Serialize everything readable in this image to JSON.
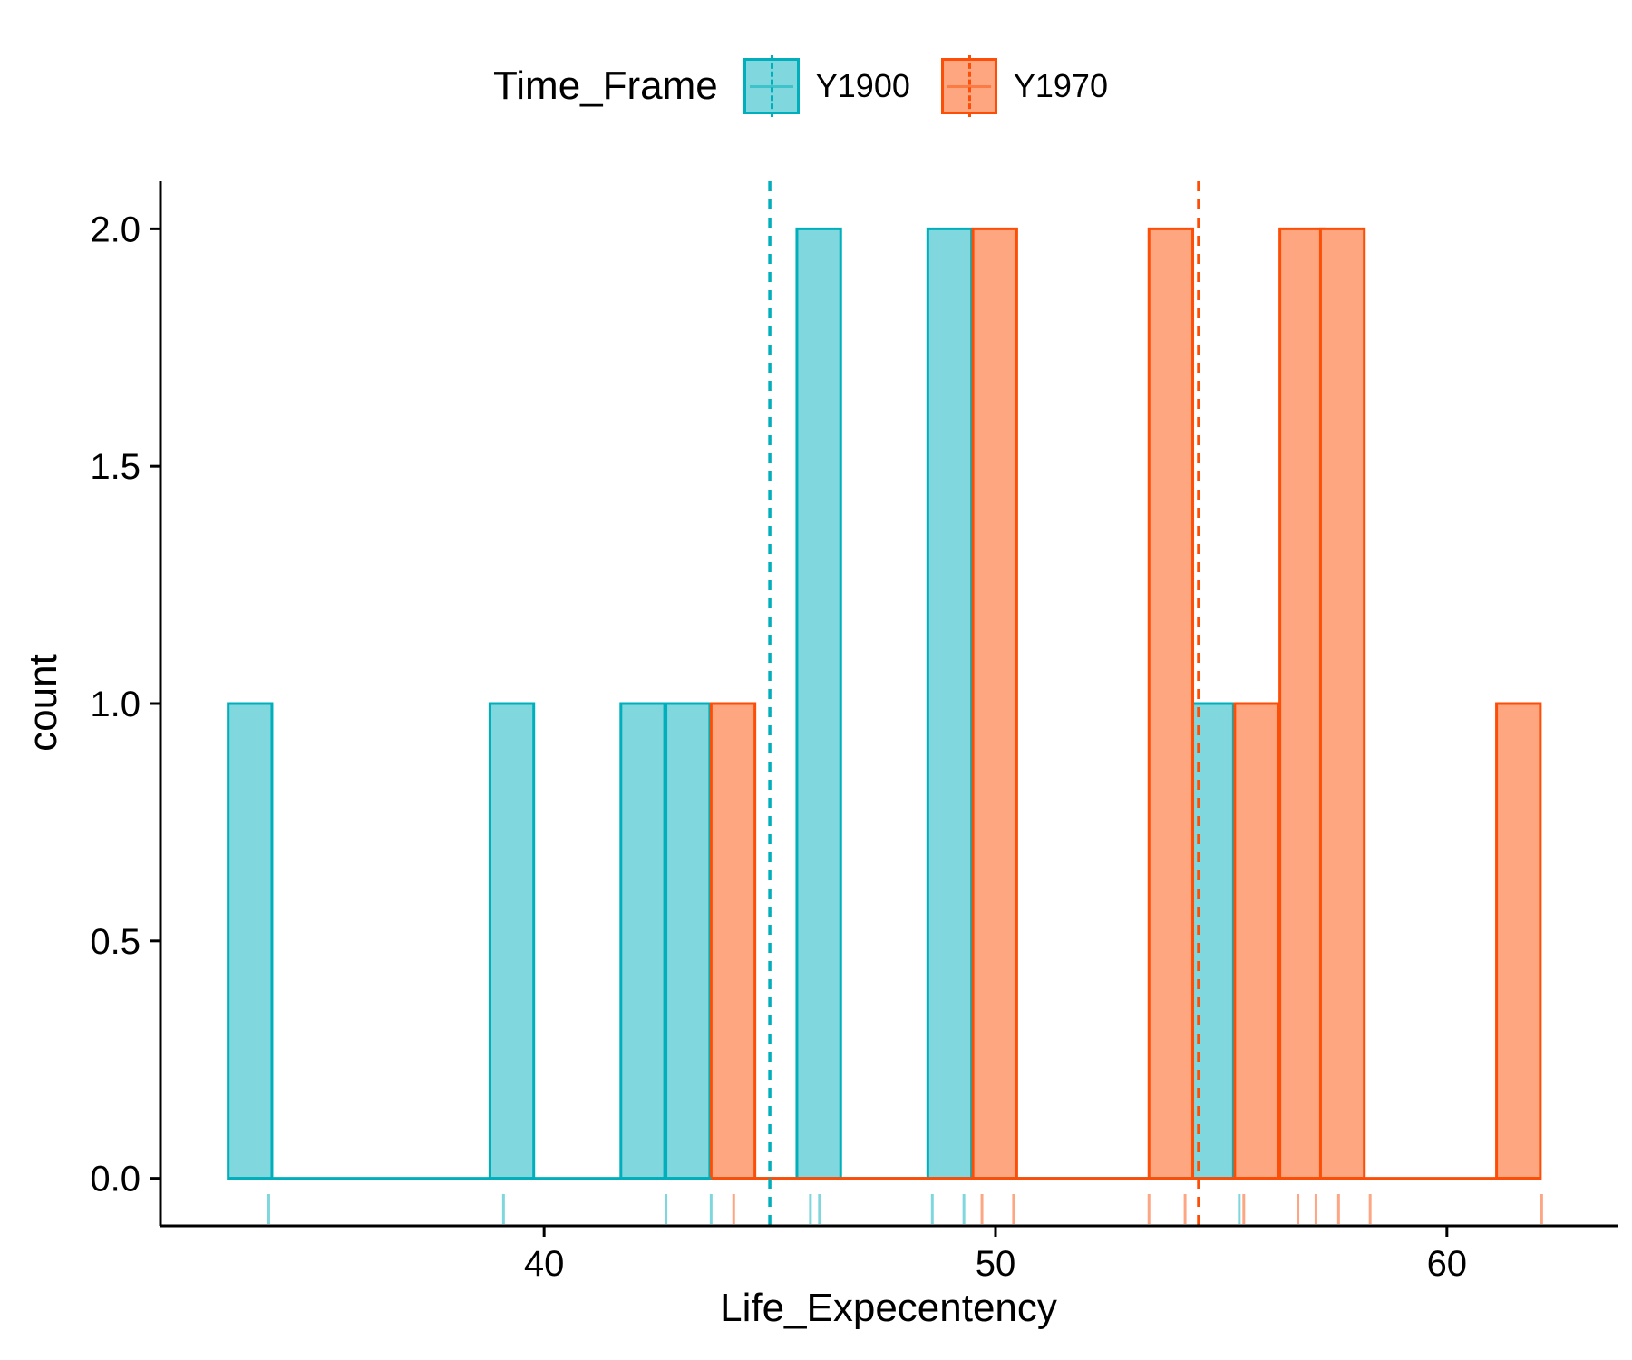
{
  "chart_data": {
    "type": "histogram",
    "xlabel": "Life_Expecentency",
    "ylabel": "count",
    "xlim": [
      31.5,
      63.8
    ],
    "ylim": [
      -0.1,
      2.1
    ],
    "x_ticks": [
      "40",
      "50",
      "60"
    ],
    "y_ticks": [
      "0.0",
      "0.5",
      "1.0",
      "1.5",
      "2.0"
    ],
    "bin_width": 0.97,
    "legend": {
      "title": "Time_Frame",
      "position": "top",
      "entries": [
        "Y1900",
        "Y1970"
      ]
    },
    "series": [
      {
        "name": "Y1900",
        "color": "#00AFBB",
        "fill": "#80D7DD",
        "mean": 45.0,
        "bins": [
          {
            "start": 33.0,
            "count": 1
          },
          {
            "start": 38.8,
            "count": 1
          },
          {
            "start": 41.7,
            "count": 1
          },
          {
            "start": 42.7,
            "count": 1
          },
          {
            "start": 45.6,
            "count": 2
          },
          {
            "start": 48.5,
            "count": 2
          },
          {
            "start": 54.3,
            "count": 1
          }
        ],
        "rug": [
          33.9,
          39.1,
          42.7,
          43.7,
          45.9,
          46.1,
          48.6,
          49.3,
          55.4
        ]
      },
      {
        "name": "Y1970",
        "color": "#FC4E07",
        "fill": "#FDA67F",
        "mean": 54.5,
        "bins": [
          {
            "start": 43.7,
            "count": 1
          },
          {
            "start": 49.5,
            "count": 2
          },
          {
            "start": 53.4,
            "count": 2
          },
          {
            "start": 55.3,
            "count": 1
          },
          {
            "start": 56.3,
            "count": 2
          },
          {
            "start": 57.2,
            "count": 2
          },
          {
            "start": 61.1,
            "count": 1
          }
        ],
        "rug": [
          44.2,
          49.7,
          50.4,
          53.4,
          54.2,
          55.5,
          56.7,
          57.1,
          57.6,
          58.3,
          62.1
        ]
      }
    ]
  }
}
